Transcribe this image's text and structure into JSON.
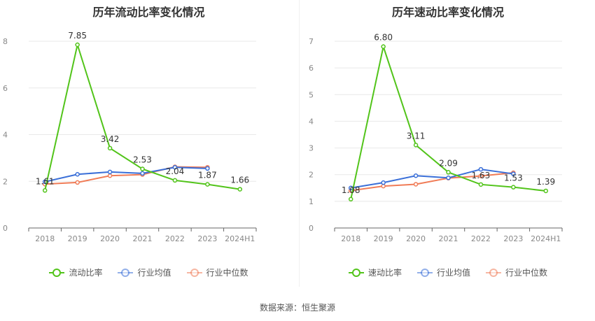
{
  "chart_data": [
    {
      "type": "line",
      "title": "历年流动比率变化情况",
      "categories": [
        "2018",
        "2019",
        "2020",
        "2021",
        "2022",
        "2023",
        "2024H1"
      ],
      "ylim": [
        0,
        8
      ],
      "yticks": [
        "0",
        "2",
        "4",
        "6",
        "8"
      ],
      "grid": true,
      "legend_position": "bottom",
      "series": [
        {
          "name": "流动比率",
          "color": "#52c41a",
          "values": [
            1.61,
            7.85,
            3.42,
            2.53,
            2.04,
            1.87,
            1.66
          ],
          "labels": [
            "1.61",
            "7.85",
            "3.42",
            "2.53",
            "2.04",
            "1.87",
            "1.66"
          ]
        },
        {
          "name": "行业均值",
          "color": "#3a6fd8",
          "values": [
            1.98,
            2.3,
            2.4,
            2.34,
            2.6,
            2.55,
            null
          ]
        },
        {
          "name": "行业中位数",
          "color": "#f07c57",
          "values": [
            1.88,
            1.95,
            2.24,
            2.29,
            2.62,
            2.6,
            null
          ]
        }
      ]
    },
    {
      "type": "line",
      "title": "历年速动比率变化情况",
      "categories": [
        "2018",
        "2019",
        "2020",
        "2021",
        "2022",
        "2023",
        "2024H1"
      ],
      "ylim": [
        0,
        7
      ],
      "yticks": [
        "0",
        "1",
        "2",
        "3",
        "4",
        "5",
        "6",
        "7"
      ],
      "grid": true,
      "legend_position": "bottom",
      "series": [
        {
          "name": "速动比率",
          "color": "#52c41a",
          "values": [
            1.08,
            6.8,
            3.11,
            2.09,
            1.63,
            1.53,
            1.39
          ],
          "labels": [
            "1.08",
            "6.80",
            "3.11",
            "2.09",
            "1.63",
            "1.53",
            "1.39"
          ]
        },
        {
          "name": "行业均值",
          "color": "#3a6fd8",
          "values": [
            1.5,
            1.7,
            1.96,
            1.88,
            2.2,
            2.03,
            null
          ]
        },
        {
          "name": "行业中位数",
          "color": "#f07c57",
          "values": [
            1.4,
            1.57,
            1.64,
            1.87,
            1.95,
            2.07,
            null
          ]
        }
      ]
    }
  ],
  "footer": {
    "source": "数据来源：恒生聚源"
  }
}
